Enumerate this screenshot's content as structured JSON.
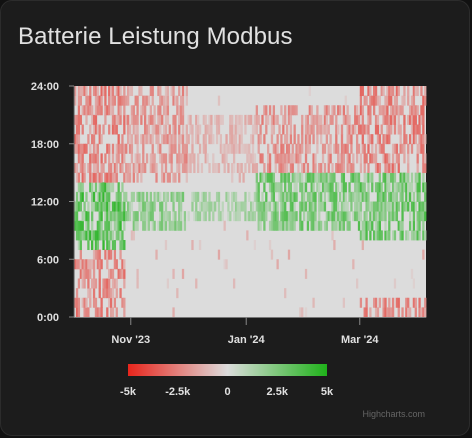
{
  "card": {
    "title": "Batterie Leistung Modbus"
  },
  "colors": {
    "background": "#1c1c1c",
    "empty_cell": "#dcdcdc",
    "negative": "#e8251c",
    "neutral": "#dcdcdc",
    "positive": "#1fb21a",
    "axis_text": "#e0e0e0"
  },
  "chart_data": {
    "type": "heatmap",
    "title": "",
    "x_axis": {
      "type": "datetime",
      "min": "2023-10-02",
      "max": "2024-04-05",
      "ticks": [
        {
          "date": "2023-11-01",
          "label": "Nov '23"
        },
        {
          "date": "2024-01-01",
          "label": "Jan '24"
        },
        {
          "date": "2024-03-01",
          "label": "Mar '24"
        }
      ]
    },
    "y_axis": {
      "unit": "hour of day",
      "min": 0,
      "max": 24,
      "ticks": [
        {
          "value": 0,
          "label": "0:00"
        },
        {
          "value": 6,
          "label": "6:00"
        },
        {
          "value": 12,
          "label": "12:00"
        },
        {
          "value": 18,
          "label": "18:00"
        },
        {
          "value": 24,
          "label": "24:00"
        }
      ]
    },
    "color_axis": {
      "min": -5000,
      "max": 5000,
      "stops": [
        "#e8251c",
        "#dcdcdc",
        "#1fb21a"
      ],
      "labels": [
        {
          "value": -5000,
          "label": "-5k"
        },
        {
          "value": -2500,
          "label": "-2.5k"
        },
        {
          "value": 0,
          "label": "0"
        },
        {
          "value": 2500,
          "label": "2.5k"
        },
        {
          "value": 5000,
          "label": "5k"
        }
      ]
    },
    "data_pattern": {
      "description": "daily columns x hourly rows; discharging (negative) evenings/nights, charging (positive) midday",
      "segments": [
        {
          "from": "2023-10-02",
          "to": "2023-10-28",
          "discharge_hours": [
            [
              0,
              7
            ],
            [
              14,
              24
            ]
          ],
          "discharge_level": -2500,
          "charge_hours": [
            [
              7,
              14
            ]
          ],
          "charge_level": 3500
        },
        {
          "from": "2023-10-29",
          "to": "2023-11-30",
          "discharge_hours": [
            [
              14,
              24
            ]
          ],
          "discharge_level": -2000,
          "charge_hours": [
            [
              9,
              13
            ]
          ],
          "charge_level": 2200
        },
        {
          "from": "2023-12-01",
          "to": "2024-01-05",
          "discharge_hours": [
            [
              15,
              21
            ]
          ],
          "discharge_level": -1200,
          "charge_hours": [
            [
              10,
              13
            ]
          ],
          "charge_level": 1500
        },
        {
          "from": "2024-01-06",
          "to": "2024-02-29",
          "discharge_hours": [
            [
              15,
              22
            ]
          ],
          "discharge_level": -2200,
          "charge_hours": [
            [
              9,
              15
            ]
          ],
          "charge_level": 2800
        },
        {
          "from": "2024-03-01",
          "to": "2024-04-05",
          "discharge_hours": [
            [
              0,
              2
            ],
            [
              15,
              24
            ]
          ],
          "discharge_level": -2500,
          "charge_hours": [
            [
              8,
              15
            ]
          ],
          "charge_level": 3000
        }
      ]
    }
  },
  "credits": "Highcharts.com"
}
